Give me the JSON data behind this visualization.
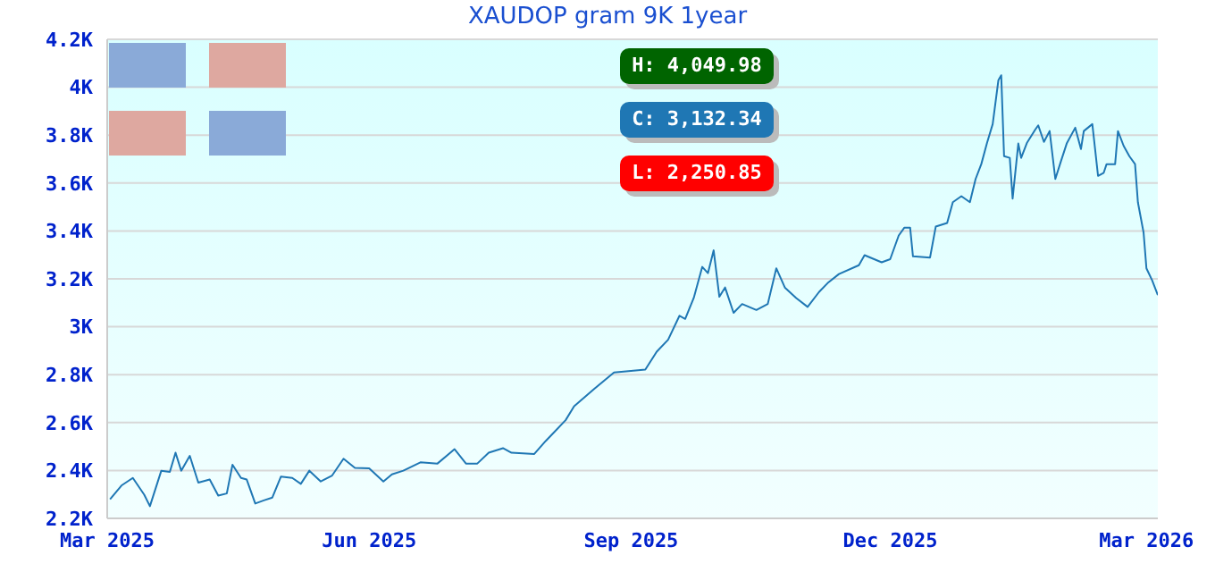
{
  "chart_data": {
    "type": "line",
    "title": "XAUDOP gram 9K 1year",
    "x": [
      "2025-03-02",
      "2025-03-06",
      "2025-03-10",
      "2025-03-14",
      "2025-03-16",
      "2025-03-20",
      "2025-03-23",
      "2025-03-25",
      "2025-03-27",
      "2025-03-30",
      "2025-04-02",
      "2025-04-06",
      "2025-04-09",
      "2025-04-12",
      "2025-04-14",
      "2025-04-17",
      "2025-04-19",
      "2025-04-22",
      "2025-04-25",
      "2025-04-28",
      "2025-05-01",
      "2025-05-05",
      "2025-05-08",
      "2025-05-11",
      "2025-05-15",
      "2025-05-19",
      "2025-05-23",
      "2025-05-27",
      "2025-06-01",
      "2025-06-06",
      "2025-06-09",
      "2025-06-13",
      "2025-06-19",
      "2025-06-25",
      "2025-07-01",
      "2025-07-05",
      "2025-07-09",
      "2025-07-13",
      "2025-07-18",
      "2025-07-21",
      "2025-07-29",
      "2025-08-02",
      "2025-08-05",
      "2025-08-09",
      "2025-08-12",
      "2025-08-19",
      "2025-08-26",
      "2025-09-06",
      "2025-09-10",
      "2025-09-14",
      "2025-09-18",
      "2025-09-20",
      "2025-09-23",
      "2025-09-26",
      "2025-09-28",
      "2025-09-30",
      "2025-10-02",
      "2025-10-04",
      "2025-10-07",
      "2025-10-10",
      "2025-10-15",
      "2025-10-19",
      "2025-10-22",
      "2025-10-25",
      "2025-10-29",
      "2025-11-02",
      "2025-11-06",
      "2025-11-09",
      "2025-11-13",
      "2025-11-20",
      "2025-11-22",
      "2025-11-28",
      "2025-12-01",
      "2025-12-04",
      "2025-12-06",
      "2025-12-08",
      "2025-12-09",
      "2025-12-15",
      "2025-12-17",
      "2025-12-21",
      "2025-12-23",
      "2025-12-26",
      "2025-12-29",
      "2025-12-31",
      "2026-01-02",
      "2026-01-04",
      "2026-01-06",
      "2026-01-08",
      "2026-01-09",
      "2026-01-10",
      "2026-01-12",
      "2026-01-13",
      "2026-01-15",
      "2026-01-16",
      "2026-01-18",
      "2026-01-21",
      "2026-01-22",
      "2026-01-24",
      "2026-01-26",
      "2026-01-28",
      "2026-01-30",
      "2026-02-01",
      "2026-02-04",
      "2026-02-06",
      "2026-02-07",
      "2026-02-10",
      "2026-02-12",
      "2026-02-14",
      "2026-02-15",
      "2026-02-18",
      "2026-02-19",
      "2026-02-21",
      "2026-02-23",
      "2026-02-25",
      "2026-02-26",
      "2026-02-28",
      "2026-03-01",
      "2026-03-03",
      "2026-03-05"
    ],
    "series": [
      {
        "color": "#1f77b4",
        "values": [
          2280,
          2337,
          2369,
          2299,
          2251,
          2399,
          2394,
          2474,
          2399,
          2461,
          2349,
          2362,
          2295,
          2304,
          2424,
          2369,
          2362,
          2262,
          2275,
          2287,
          2374,
          2369,
          2344,
          2399,
          2354,
          2379,
          2449,
          2411,
          2409,
          2354,
          2384,
          2399,
          2434,
          2429,
          2489,
          2429,
          2429,
          2474,
          2493,
          2474,
          2469,
          2523,
          2560,
          2610,
          2668,
          2740,
          2809,
          2821,
          2896,
          2946,
          3046,
          3033,
          3120,
          3250,
          3224,
          3319,
          3125,
          3164,
          3058,
          3095,
          3070,
          3095,
          3244,
          3164,
          3120,
          3083,
          3145,
          3182,
          3220,
          3257,
          3299,
          3269,
          3282,
          3381,
          3414,
          3414,
          3294,
          3289,
          3418,
          3433,
          3520,
          3545,
          3520,
          3617,
          3679,
          3767,
          3846,
          4029,
          4050,
          3712,
          3705,
          3535,
          3765,
          3705,
          3767,
          3824,
          3841,
          3772,
          3817,
          3617,
          3692,
          3765,
          3831,
          3742,
          3817,
          3846,
          3630,
          3643,
          3679,
          3679,
          3817,
          3755,
          3712,
          3679,
          3520,
          3393,
          3244,
          3194,
          3132
        ]
      }
    ],
    "xlim": [
      "2025-03-01",
      "2026-03-05"
    ],
    "xticks": [
      {
        "value": "2025-03-01",
        "label": "Mar 2025"
      },
      {
        "value": "2025-06-01",
        "label": "Jun 2025"
      },
      {
        "value": "2025-09-01",
        "label": "Sep 2025"
      },
      {
        "value": "2025-12-01",
        "label": "Dec 2025"
      },
      {
        "value": "2026-03-01",
        "label": "Mar 2026"
      }
    ],
    "ylim": [
      2200,
      4200
    ],
    "yticks": [
      {
        "value": 2200,
        "label": "2.2K"
      },
      {
        "value": 2400,
        "label": "2.4K"
      },
      {
        "value": 2600,
        "label": "2.6K"
      },
      {
        "value": 2800,
        "label": "2.8K"
      },
      {
        "value": 3000,
        "label": "3K"
      },
      {
        "value": 3200,
        "label": "3.2K"
      },
      {
        "value": 3400,
        "label": "3.4K"
      },
      {
        "value": 3600,
        "label": "3.6K"
      },
      {
        "value": 3800,
        "label": "3.8K"
      },
      {
        "value": 4000,
        "label": "4K"
      },
      {
        "value": 4200,
        "label": "4.2K"
      }
    ],
    "grid": "y",
    "legend": false,
    "annotations": [
      "H: 4,049.98",
      "C: 3,132.34",
      "L: 2,250.85"
    ]
  }
}
